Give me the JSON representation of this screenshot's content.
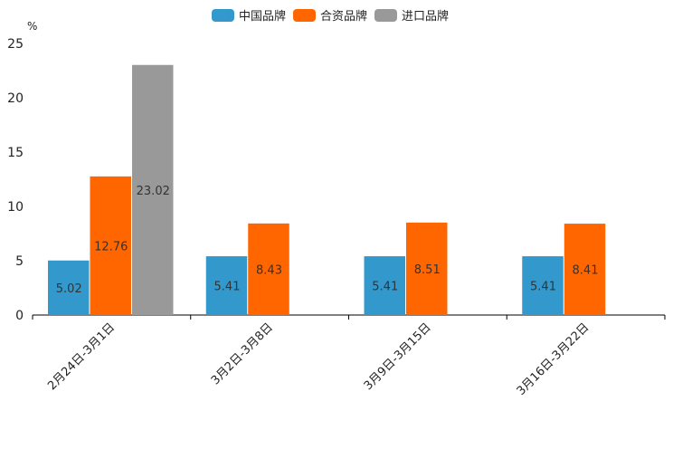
{
  "chart_data": {
    "type": "bar",
    "ylabel": "%",
    "ylim": [
      0,
      25
    ],
    "yticks": [
      0,
      5,
      10,
      15,
      20,
      25
    ],
    "categories": [
      "2月24日-3月1日",
      "3月2日-3月8日",
      "3月9日-3月15日",
      "3月16日-3月22日"
    ],
    "series": [
      {
        "name": "中国品牌",
        "color": "#3399cc",
        "values": [
          5.02,
          5.41,
          5.41,
          5.41
        ]
      },
      {
        "name": "合资品牌",
        "color": "#ff6600",
        "values": [
          12.76,
          8.43,
          8.51,
          8.41
        ]
      },
      {
        "name": "进口品牌",
        "color": "#999999",
        "values": [
          23.02,
          null,
          null,
          null
        ]
      }
    ],
    "legend": "top-center",
    "grid": false
  }
}
